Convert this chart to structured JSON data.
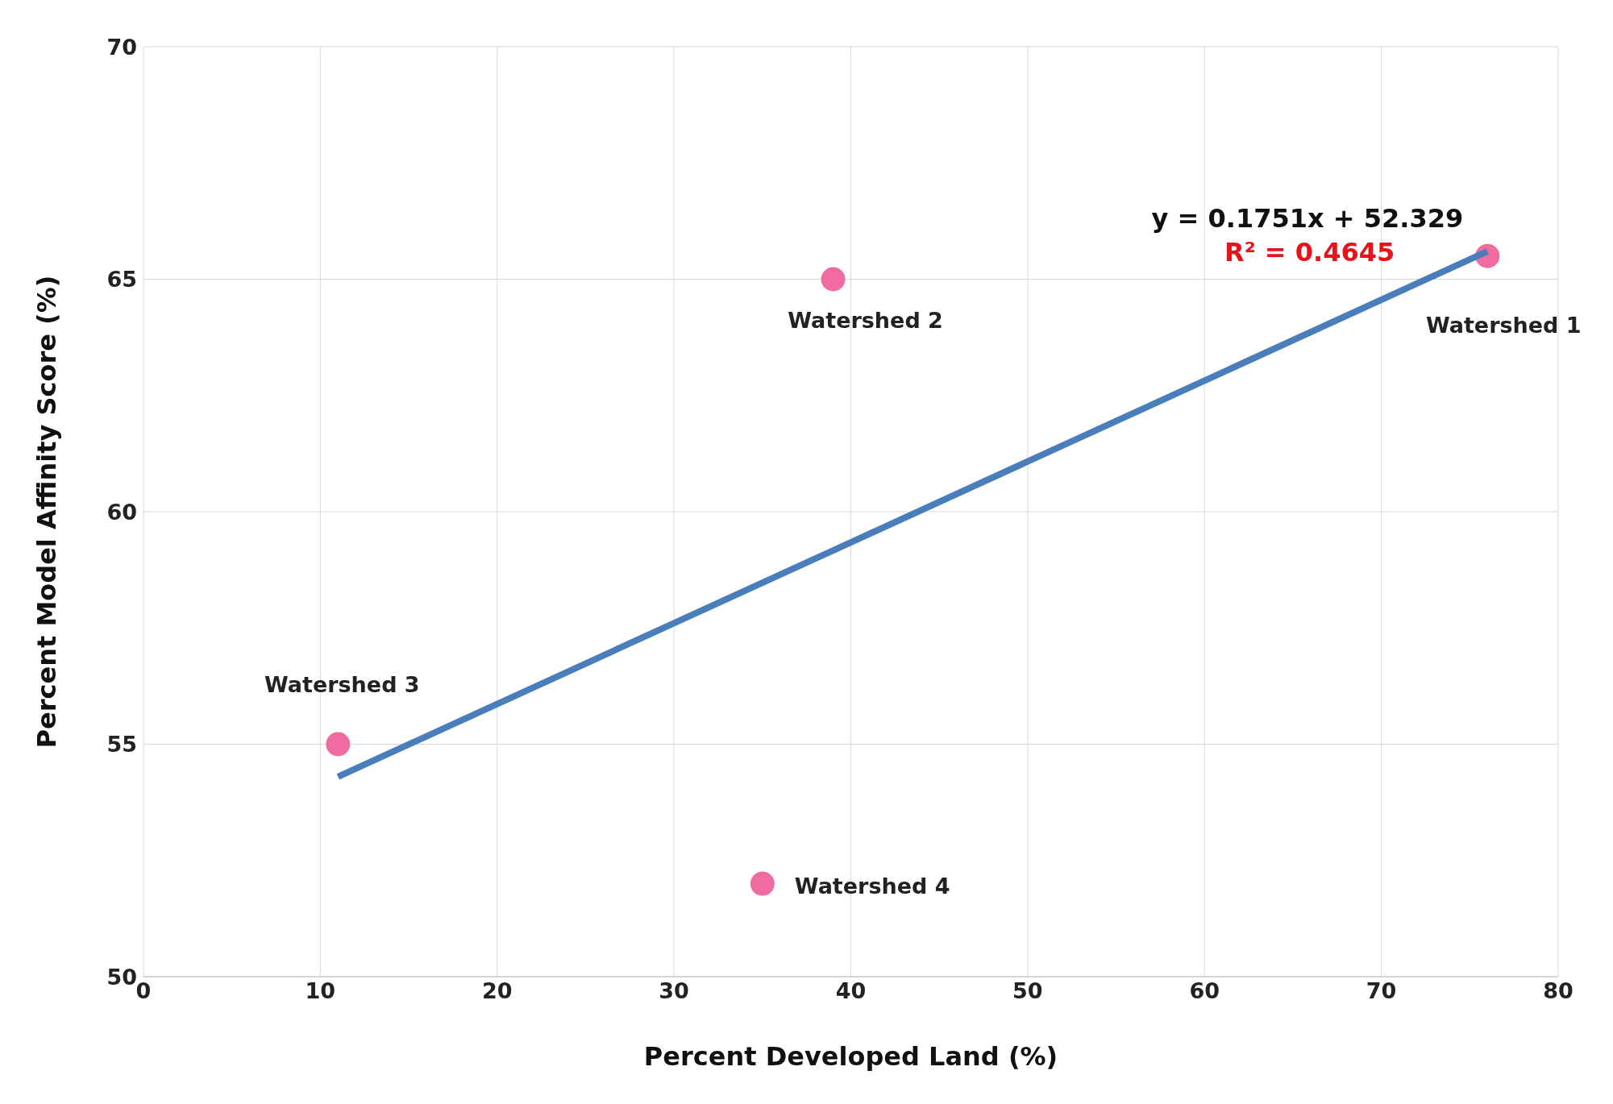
{
  "chart_data": {
    "type": "scatter",
    "xlabel": "Percent Developed Land (%)",
    "ylabel": "Percent Model Affinity Score (%)",
    "xlim": [
      0,
      80
    ],
    "xticks": [
      0,
      10,
      20,
      30,
      40,
      50,
      60,
      70,
      80
    ],
    "ylim": [
      50,
      70
    ],
    "yticks": [
      50,
      55,
      60,
      65,
      70
    ],
    "grid": true,
    "legend": false,
    "series": [
      {
        "color": "#f06ba0",
        "marker": "circle",
        "x": [
          76,
          39,
          11,
          35
        ],
        "values": [
          65.5,
          65,
          55,
          52
        ]
      },
      {
        "type": "line",
        "color": "#4a7ebb",
        "marker": "none",
        "line_style": "solid",
        "x": [
          11,
          76
        ],
        "values": [
          54.3,
          65.6
        ]
      }
    ],
    "annotations": [
      {
        "text": "Watershed 1",
        "x": 76,
        "y": 65.5
      },
      {
        "text": "Watershed 2",
        "x": 39,
        "y": 65
      },
      {
        "text": "Watershed 3",
        "x": 11,
        "y": 55
      },
      {
        "text": "Watershed 4",
        "x": 35,
        "y": 52
      },
      "y = 0.1751x + 52.329",
      "R² = 0.4645"
    ]
  }
}
